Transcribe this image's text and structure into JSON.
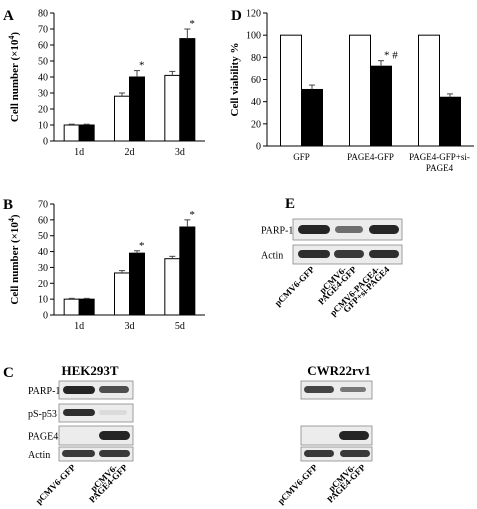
{
  "panels": {
    "A": {
      "letter": "A"
    },
    "B": {
      "letter": "B"
    },
    "C": {
      "letter": "C"
    },
    "D": {
      "letter": "D"
    },
    "E": {
      "letter": "E"
    }
  },
  "chart_data": [
    {
      "panel": "A",
      "type": "bar",
      "ylabel_main": "Cell number (×10",
      "ylabel_exp": "4",
      "ylabel_close": ")",
      "ylim": [
        0,
        80
      ],
      "yticks": [
        0,
        10,
        20,
        30,
        40,
        50,
        60,
        70,
        80
      ],
      "categories": [
        "1d",
        "2d",
        "3d"
      ],
      "series": [
        {
          "fill": "white",
          "values": [
            10,
            28,
            41
          ],
          "errors": [
            0.5,
            2,
            2.5
          ]
        },
        {
          "fill": "black",
          "values": [
            10,
            40,
            64
          ],
          "errors": [
            0.5,
            4,
            6
          ]
        }
      ],
      "annotations": [
        {
          "category": "2d",
          "series": 1,
          "text": "*"
        },
        {
          "category": "3d",
          "series": 1,
          "text": "*"
        }
      ]
    },
    {
      "panel": "B",
      "type": "bar",
      "ylabel_main": "Cell number (×10",
      "ylabel_exp": "4",
      "ylabel_close": ")",
      "ylim": [
        0,
        70
      ],
      "yticks": [
        0,
        10,
        20,
        30,
        40,
        50,
        60,
        70
      ],
      "categories": [
        "1d",
        "3d",
        "5d"
      ],
      "series": [
        {
          "fill": "white",
          "values": [
            10,
            26.5,
            35.5
          ],
          "errors": [
            0.5,
            1.5,
            1.5
          ]
        },
        {
          "fill": "black",
          "values": [
            10,
            39,
            55.5
          ],
          "errors": [
            0.5,
            1.5,
            4.5
          ]
        }
      ],
      "annotations": [
        {
          "category": "3d",
          "series": 1,
          "text": "*"
        },
        {
          "category": "5d",
          "series": 1,
          "text": "*"
        }
      ]
    },
    {
      "panel": "D",
      "type": "bar",
      "ylabel": "Cell viability %",
      "ylim": [
        0,
        120
      ],
      "yticks": [
        0,
        20,
        40,
        60,
        80,
        100,
        120
      ],
      "categories": [
        "GFP",
        "PAGE4-GFP",
        "PAGE4-GFP+si-PAGE4"
      ],
      "category_lines": [
        [
          "GFP"
        ],
        [
          "PAGE4-GFP"
        ],
        [
          "PAGE4-GFP+si-",
          "PAGE4"
        ]
      ],
      "series": [
        {
          "fill": "white",
          "values": [
            100,
            100,
            100
          ],
          "errors": [
            0,
            0,
            0
          ]
        },
        {
          "fill": "black",
          "values": [
            51,
            72,
            44
          ],
          "errors": [
            4,
            5,
            3
          ]
        }
      ],
      "annotations": [
        {
          "category": "PAGE4-GFP",
          "series": 1,
          "text": "* #"
        }
      ]
    }
  ],
  "blots": {
    "C": {
      "cell_lines": [
        "HEK293T",
        "CWR22rv1"
      ],
      "rows": [
        "PARP-1",
        "pS-p53",
        "PAGE4",
        "Actin"
      ],
      "lanes": [
        [
          "pCMV6-GFP"
        ],
        [
          "pCMV6-",
          "PAGE4-GFP"
        ],
        [
          "pCMV6-GFP"
        ],
        [
          "pCMV6-",
          "PAGE4-GFP"
        ]
      ]
    },
    "E": {
      "rows": [
        "PARP-1",
        "Actin"
      ],
      "lanes": [
        [
          "pCMV6-GFP"
        ],
        [
          "pCMV6-",
          "PAGE4-GFP"
        ],
        [
          "pCMV6-PAGE4-",
          "GFP+si-PAGE4"
        ]
      ]
    }
  }
}
